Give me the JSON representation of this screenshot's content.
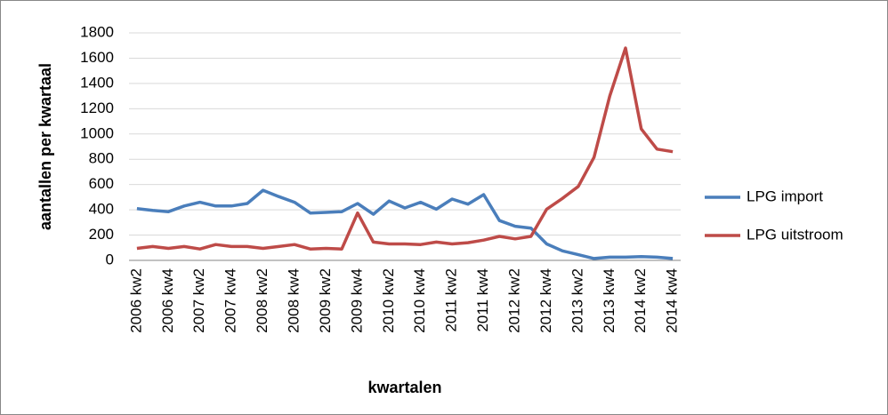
{
  "chart_data": {
    "type": "line",
    "x_label": "kwartalen",
    "y_label": "aantallen per kwartaal",
    "categories": [
      "2006 kw2",
      null,
      "2006 kw4",
      null,
      "2007 kw2",
      null,
      "2007 kw4",
      null,
      "2008 kw2",
      null,
      "2008 kw4",
      null,
      "2009 kw2",
      null,
      "2009 kw4",
      null,
      "2010 kw2",
      null,
      "2010 kw4",
      null,
      "2011 kw2",
      null,
      "2011 kw4",
      null,
      "2012 kw2",
      null,
      "2012 kw4",
      null,
      "2013 kw2",
      null,
      "2013 kw4",
      null,
      "2014 kw2",
      null,
      "2014 kw4"
    ],
    "series": [
      {
        "name": "LPG import",
        "color": "#4a7ebb",
        "values": [
          410,
          395,
          385,
          430,
          460,
          430,
          430,
          450,
          555,
          505,
          460,
          375,
          380,
          385,
          450,
          365,
          470,
          415,
          460,
          405,
          485,
          445,
          520,
          315,
          270,
          255,
          130,
          75,
          45,
          15,
          25,
          25,
          30,
          25,
          15
        ]
      },
      {
        "name": "LPG uitstroom",
        "color": "#be4b48",
        "values": [
          95,
          110,
          95,
          110,
          90,
          125,
          110,
          110,
          95,
          110,
          125,
          90,
          95,
          90,
          375,
          145,
          130,
          130,
          125,
          145,
          130,
          140,
          160,
          190,
          170,
          190,
          405,
          490,
          585,
          815,
          1300,
          1680,
          1040,
          880,
          860
        ]
      }
    ],
    "ylim": [
      0,
      1800
    ],
    "yticks": [
      0,
      200,
      400,
      600,
      800,
      1000,
      1200,
      1400,
      1600,
      1800
    ],
    "grid": true,
    "legend": "right"
  }
}
